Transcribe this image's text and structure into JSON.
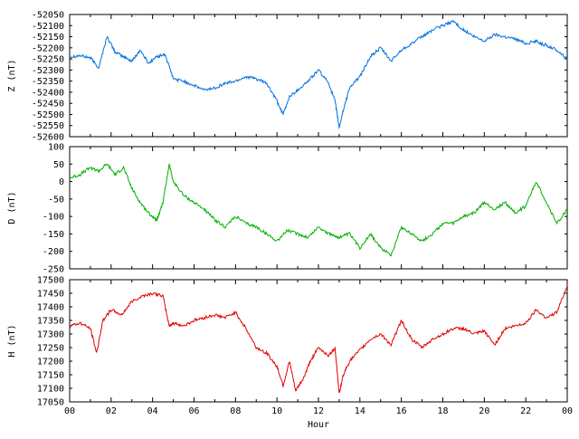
{
  "chart_data": [
    {
      "type": "line",
      "ylabel": "Z (nT)",
      "ylim": [
        -52600,
        -52050
      ],
      "yticks": [
        -52050,
        -52100,
        -52150,
        -52200,
        -52250,
        -52300,
        -52350,
        -52400,
        -52450,
        -52500,
        -52550,
        -52600
      ],
      "xlim": [
        0,
        24
      ],
      "grid": false,
      "series": [
        {
          "color": "#0070e0",
          "x": [
            0,
            0.5,
            1.0,
            1.4,
            1.8,
            2.2,
            2.6,
            3.0,
            3.4,
            3.8,
            4.2,
            4.6,
            5.0,
            5.5,
            6.0,
            6.5,
            7.0,
            7.5,
            8.0,
            8.5,
            9.0,
            9.5,
            10.0,
            10.3,
            10.6,
            11.0,
            11.5,
            12.0,
            12.5,
            12.8,
            13.0,
            13.2,
            13.5,
            14.0,
            14.5,
            15.0,
            15.5,
            16.0,
            16.5,
            17.0,
            17.5,
            18.0,
            18.5,
            19.0,
            19.5,
            20.0,
            20.5,
            21.0,
            21.5,
            22.0,
            22.5,
            23.0,
            23.5,
            24.0
          ],
          "y": [
            -52240,
            -52235,
            -52245,
            -52290,
            -52150,
            -52220,
            -52240,
            -52260,
            -52210,
            -52270,
            -52240,
            -52230,
            -52340,
            -52350,
            -52370,
            -52390,
            -52380,
            -52360,
            -52350,
            -52330,
            -52340,
            -52360,
            -52440,
            -52500,
            -52420,
            -52390,
            -52350,
            -52300,
            -52360,
            -52440,
            -52560,
            -52480,
            -52380,
            -52330,
            -52240,
            -52200,
            -52260,
            -52210,
            -52180,
            -52150,
            -52120,
            -52100,
            -52080,
            -52120,
            -52150,
            -52170,
            -52140,
            -52150,
            -52160,
            -52180,
            -52170,
            -52190,
            -52210,
            -52250
          ]
        }
      ]
    },
    {
      "type": "line",
      "ylabel": "D (nT)",
      "ylim": [
        -250,
        100
      ],
      "yticks": [
        100,
        50,
        0,
        -50,
        -100,
        -150,
        -200,
        -250
      ],
      "xlim": [
        0,
        24
      ],
      "grid": false,
      "series": [
        {
          "color": "#00b000",
          "x": [
            0,
            0.5,
            1.0,
            1.4,
            1.8,
            2.2,
            2.6,
            3.0,
            3.4,
            3.8,
            4.2,
            4.5,
            4.8,
            5.0,
            5.5,
            6.0,
            6.5,
            7.0,
            7.5,
            8.0,
            8.5,
            9.0,
            9.5,
            10.0,
            10.5,
            11.0,
            11.5,
            12.0,
            12.5,
            13.0,
            13.5,
            14.0,
            14.5,
            15.0,
            15.5,
            16.0,
            16.5,
            17.0,
            17.5,
            18.0,
            18.5,
            19.0,
            19.5,
            20.0,
            20.5,
            21.0,
            21.5,
            22.0,
            22.5,
            23.0,
            23.5,
            24.0
          ],
          "y": [
            10,
            20,
            40,
            30,
            50,
            20,
            40,
            -20,
            -60,
            -90,
            -110,
            -60,
            50,
            0,
            -40,
            -60,
            -80,
            -110,
            -130,
            -100,
            -120,
            -130,
            -150,
            -170,
            -140,
            -150,
            -160,
            -130,
            -150,
            -160,
            -150,
            -190,
            -150,
            -190,
            -210,
            -130,
            -150,
            -170,
            -150,
            -120,
            -120,
            -100,
            -90,
            -60,
            -80,
            -60,
            -90,
            -70,
            0,
            -60,
            -120,
            -80
          ]
        }
      ]
    },
    {
      "type": "line",
      "ylabel": "H (nT)",
      "xlabel": "Hour",
      "ylim": [
        17050,
        17500
      ],
      "yticks": [
        17500,
        17450,
        17400,
        17350,
        17300,
        17250,
        17200,
        17150,
        17100,
        17050
      ],
      "xlim": [
        0,
        24
      ],
      "xticks": [
        "00",
        "02",
        "04",
        "06",
        "08",
        "10",
        "12",
        "14",
        "16",
        "18",
        "20",
        "22",
        "00"
      ],
      "grid": false,
      "series": [
        {
          "color": "#e00000",
          "x": [
            0,
            0.5,
            1.0,
            1.3,
            1.6,
            2.0,
            2.5,
            3.0,
            3.5,
            4.0,
            4.5,
            4.8,
            5.0,
            5.5,
            6.0,
            6.5,
            7.0,
            7.5,
            8.0,
            8.5,
            9.0,
            9.5,
            10.0,
            10.3,
            10.6,
            10.9,
            11.3,
            11.6,
            12.0,
            12.5,
            12.8,
            13.0,
            13.2,
            13.5,
            14.0,
            14.5,
            15.0,
            15.5,
            16.0,
            16.5,
            17.0,
            17.5,
            18.0,
            18.5,
            19.0,
            19.5,
            20.0,
            20.5,
            21.0,
            21.5,
            22.0,
            22.5,
            23.0,
            23.5,
            24.0
          ],
          "y": [
            17330,
            17340,
            17320,
            17230,
            17350,
            17390,
            17370,
            17420,
            17440,
            17450,
            17440,
            17330,
            17340,
            17330,
            17350,
            17360,
            17370,
            17360,
            17380,
            17320,
            17250,
            17230,
            17180,
            17110,
            17200,
            17090,
            17140,
            17200,
            17250,
            17220,
            17250,
            17080,
            17150,
            17200,
            17240,
            17280,
            17300,
            17260,
            17350,
            17280,
            17250,
            17280,
            17300,
            17320,
            17320,
            17300,
            17310,
            17260,
            17320,
            17330,
            17340,
            17390,
            17360,
            17380,
            17480
          ]
        }
      ]
    }
  ]
}
